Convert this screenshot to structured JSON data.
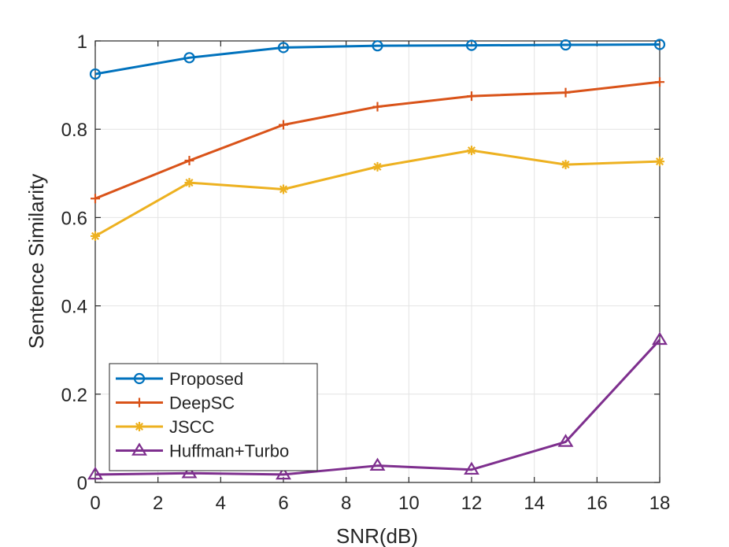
{
  "chart_data": {
    "type": "line",
    "xlabel": "SNR(dB)",
    "ylabel": "Sentence Similarity",
    "xlim": [
      0,
      18
    ],
    "ylim": [
      0,
      1
    ],
    "xticks": [
      0,
      2,
      4,
      6,
      8,
      10,
      12,
      14,
      16,
      18
    ],
    "yticks": [
      0,
      0.2,
      0.4,
      0.6,
      0.8,
      1
    ],
    "xtick_labels": [
      "0",
      "2",
      "4",
      "6",
      "8",
      "10",
      "12",
      "14",
      "16",
      "18"
    ],
    "ytick_labels": [
      "0",
      "0.2",
      "0.4",
      "0.6",
      "0.8",
      "1"
    ],
    "grid": true,
    "legend_position": "bottom-left",
    "x": [
      0,
      3,
      6,
      9,
      12,
      15,
      18
    ],
    "series": [
      {
        "name": "Proposed",
        "color": "#0072BD",
        "marker": "circle",
        "values": [
          0.925,
          0.962,
          0.985,
          0.989,
          0.99,
          0.991,
          0.992
        ]
      },
      {
        "name": "DeepSC",
        "color": "#D95319",
        "marker": "plus",
        "values": [
          0.643,
          0.729,
          0.81,
          0.851,
          0.875,
          0.883,
          0.907
        ]
      },
      {
        "name": "JSCC",
        "color": "#EDB120",
        "marker": "asterisk",
        "values": [
          0.558,
          0.679,
          0.664,
          0.715,
          0.752,
          0.72,
          0.727
        ]
      },
      {
        "name": "Huffman+Turbo",
        "color": "#7E2F8E",
        "marker": "triangle",
        "values": [
          0.018,
          0.021,
          0.018,
          0.038,
          0.029,
          0.092,
          0.323
        ]
      }
    ]
  }
}
